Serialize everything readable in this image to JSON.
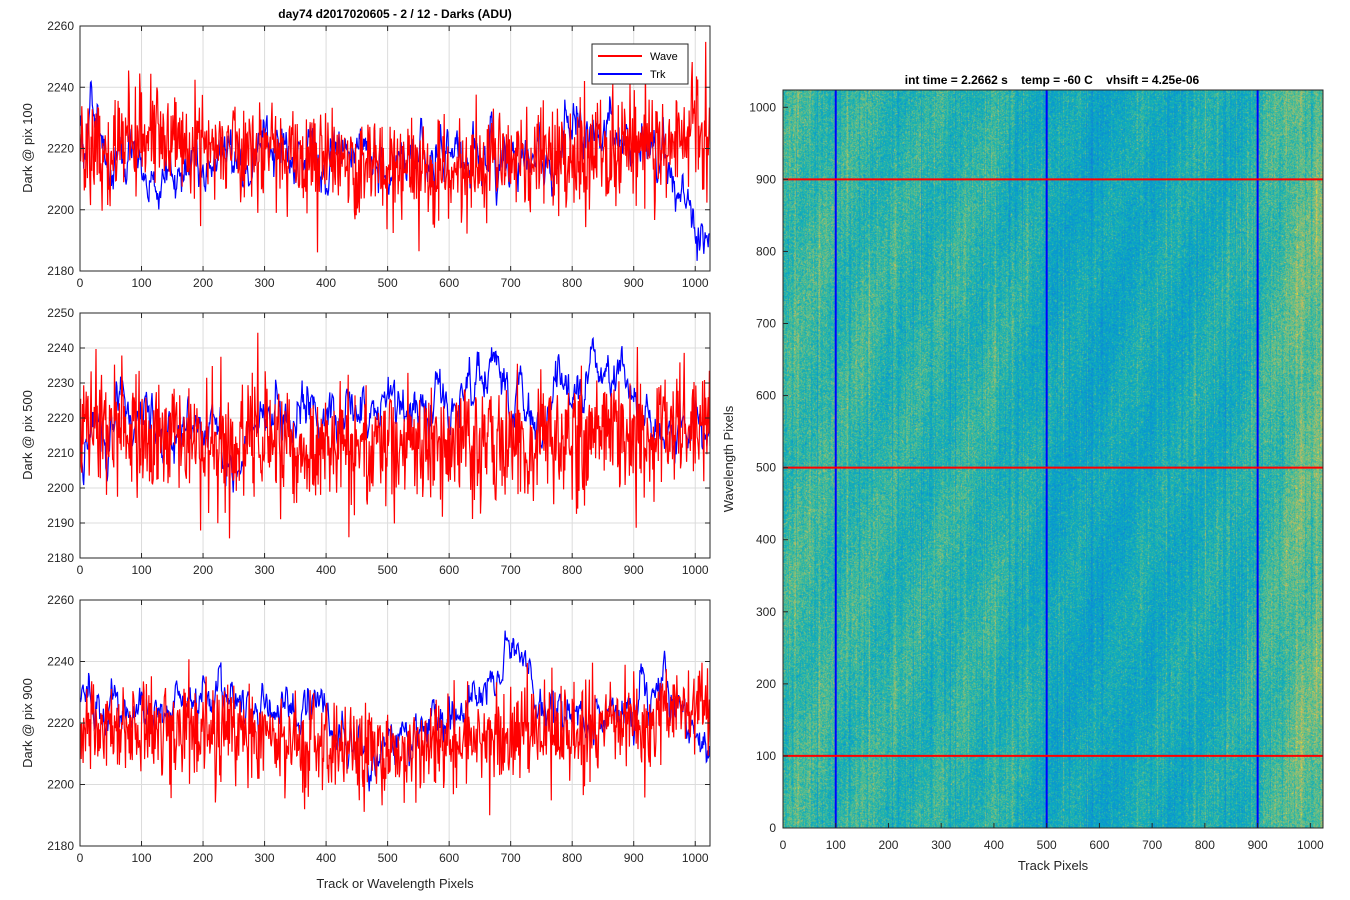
{
  "figure": {
    "main_title": "day74 d2017020605 - 2 / 12 - Darks (ADU)",
    "heatmap_title": "int time = 2.2662 s    temp = -60 C    vhsift = 4.25e-06",
    "shared_xlabel": "Track or Wavelength Pixels"
  },
  "chart_data": [
    {
      "type": "line",
      "ylabel": "Dark @ pix 100",
      "xlabel": "",
      "xlim": [
        0,
        1024
      ],
      "ylim": [
        2180,
        2260
      ],
      "xticks": [
        0,
        100,
        200,
        300,
        400,
        500,
        600,
        700,
        800,
        900,
        1000
      ],
      "yticks": [
        2180,
        2200,
        2220,
        2240,
        2260
      ],
      "grid": true,
      "legend": {
        "placement": "top-right",
        "entries": [
          "Wave",
          "Trk"
        ]
      },
      "series": [
        {
          "name": "Wave",
          "color": "#ff0000",
          "mean": 2218,
          "noise": 9,
          "x": [
            0,
            100,
            200,
            300,
            400,
            500,
            600,
            700,
            800,
            900,
            1024
          ],
          "y": [
            2219,
            2221,
            2222,
            2218,
            2215,
            2214,
            2213,
            2217,
            2216,
            2221,
            2226
          ]
        },
        {
          "name": "Trk",
          "color": "#0000ff",
          "mean": 2216,
          "noise": 6,
          "x": [
            0,
            50,
            100,
            150,
            200,
            250,
            300,
            350,
            400,
            450,
            500,
            550,
            600,
            650,
            700,
            750,
            800,
            850,
            900,
            950,
            1000,
            1024
          ],
          "y": [
            2226,
            2219,
            2214,
            2212,
            2210,
            2216,
            2218,
            2214,
            2214,
            2218,
            2216,
            2216,
            2220,
            2217,
            2216,
            2214,
            2226,
            2232,
            2222,
            2214,
            2197,
            2193
          ]
        }
      ]
    },
    {
      "type": "line",
      "ylabel": "Dark @ pix 500",
      "xlabel": "",
      "xlim": [
        0,
        1024
      ],
      "ylim": [
        2180,
        2250
      ],
      "xticks": [
        0,
        100,
        200,
        300,
        400,
        500,
        600,
        700,
        800,
        900,
        1000
      ],
      "yticks": [
        2180,
        2190,
        2200,
        2210,
        2220,
        2230,
        2240,
        2250
      ],
      "grid": true,
      "series": [
        {
          "name": "Wave",
          "color": "#ff0000",
          "mean": 2214,
          "noise": 9,
          "x": [
            0,
            100,
            200,
            300,
            400,
            500,
            600,
            700,
            800,
            900,
            1024
          ],
          "y": [
            2215,
            2216,
            2214,
            2213,
            2212,
            2211,
            2212,
            2214,
            2215,
            2216,
            2219
          ]
        },
        {
          "name": "Trk",
          "color": "#0000ff",
          "mean": 2218,
          "noise": 5,
          "x": [
            0,
            50,
            100,
            150,
            200,
            250,
            300,
            350,
            400,
            450,
            500,
            550,
            600,
            650,
            700,
            750,
            800,
            850,
            900,
            950,
            1000,
            1024
          ],
          "y": [
            2213,
            2216,
            2224,
            2216,
            2218,
            2208,
            2220,
            2222,
            2217,
            2220,
            2225,
            2222,
            2222,
            2232,
            2228,
            2220,
            2230,
            2234,
            2224,
            2218,
            2214,
            2222
          ]
        }
      ]
    },
    {
      "type": "line",
      "ylabel": "Dark @ pix 900",
      "xlabel": "Track or Wavelength Pixels",
      "xlim": [
        0,
        1024
      ],
      "ylim": [
        2180,
        2260
      ],
      "xticks": [
        0,
        100,
        200,
        300,
        400,
        500,
        600,
        700,
        800,
        900,
        1000
      ],
      "yticks": [
        2180,
        2200,
        2220,
        2240,
        2260
      ],
      "grid": true,
      "series": [
        {
          "name": "Wave",
          "color": "#ff0000",
          "mean": 2217,
          "noise": 8,
          "x": [
            0,
            100,
            200,
            300,
            400,
            500,
            600,
            700,
            800,
            900,
            1024
          ],
          "y": [
            2217,
            2219,
            2218,
            2216,
            2213,
            2211,
            2213,
            2216,
            2216,
            2220,
            2225
          ]
        },
        {
          "name": "Trk",
          "color": "#0000ff",
          "mean": 2222,
          "noise": 5,
          "x": [
            0,
            50,
            100,
            150,
            200,
            250,
            300,
            350,
            400,
            450,
            500,
            550,
            600,
            650,
            700,
            750,
            800,
            850,
            900,
            950,
            1000,
            1024
          ],
          "y": [
            2228,
            2226,
            2224,
            2222,
            2234,
            2226,
            2222,
            2226,
            2220,
            2212,
            2213,
            2221,
            2222,
            2226,
            2243,
            2225,
            2222,
            2222,
            2226,
            2230,
            2221,
            2212
          ]
        }
      ]
    },
    {
      "type": "heatmap",
      "title": "int time = 2.2662 s    temp = -60 C    vhsift = 4.25e-06",
      "xlabel": "Track Pixels",
      "ylabel": "Wavelength Pixels",
      "xlim": [
        0,
        1024
      ],
      "ylim": [
        0,
        1024
      ],
      "xticks": [
        0,
        100,
        200,
        300,
        400,
        500,
        600,
        700,
        800,
        900,
        1000
      ],
      "yticks": [
        0,
        100,
        200,
        300,
        400,
        500,
        600,
        700,
        800,
        900,
        1000
      ],
      "colormap": "parula",
      "column_level": [
        {
          "x": 0,
          "v": 0.55
        },
        {
          "x": 150,
          "v": 0.52
        },
        {
          "x": 300,
          "v": 0.5
        },
        {
          "x": 450,
          "v": 0.47
        },
        {
          "x": 500,
          "v": 0.42
        },
        {
          "x": 600,
          "v": 0.4
        },
        {
          "x": 700,
          "v": 0.42
        },
        {
          "x": 850,
          "v": 0.45
        },
        {
          "x": 900,
          "v": 0.5
        },
        {
          "x": 950,
          "v": 0.58
        },
        {
          "x": 1024,
          "v": 0.62
        }
      ],
      "vertical_markers": {
        "x": [
          100,
          500,
          900
        ],
        "color": "#0000ff"
      },
      "horizontal_markers": {
        "y": [
          100,
          500,
          900
        ],
        "color": "#ff0000"
      }
    }
  ]
}
